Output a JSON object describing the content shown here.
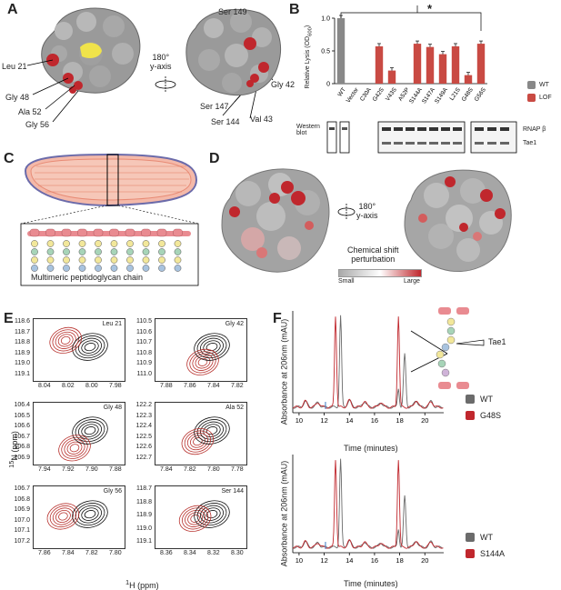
{
  "panelA": {
    "letter": "A",
    "rotation_label": "180°\ny-axis",
    "labels_left": [
      "Leu 21",
      "Gly 48",
      "Ala 52",
      "Gly 56"
    ],
    "labels_right": [
      "Ser 149",
      "Gly 42",
      "Ser 147",
      "Val 43",
      "Ser 144"
    ]
  },
  "panelB": {
    "letter": "B",
    "significance": "*",
    "ylabel": "Relative Lysis (OD",
    "ylabel_sub": "600",
    "legend": [
      {
        "label": "WT",
        "color": "#888888"
      },
      {
        "label": "LOF",
        "color": "#c94a43"
      }
    ],
    "western_label": "Western\nblot",
    "blot_labels": [
      "RNAP β",
      "Tae1"
    ]
  },
  "chart_data": {
    "type": "bar",
    "categories": [
      "WT",
      "Vector",
      "C30A",
      "G42S",
      "V43S",
      "A52P",
      "S144A",
      "S147A",
      "S149A",
      "L21S",
      "G48S",
      "G56S"
    ],
    "values": [
      1.0,
      0.0,
      0.0,
      0.57,
      0.2,
      0.0,
      0.61,
      0.56,
      0.45,
      0.57,
      0.13,
      0.61
    ],
    "groups": [
      "WT",
      "LOF",
      "LOF",
      "LOF",
      "LOF",
      "LOF",
      "LOF",
      "LOF",
      "LOF",
      "LOF",
      "LOF",
      "LOF"
    ],
    "ylim": [
      0,
      1.0
    ],
    "yticks": [
      "0",
      "0.5",
      "1.0"
    ],
    "ylabel": "Relative Lysis (OD600)"
  },
  "panelC": {
    "letter": "C",
    "caption": "Multimeric peptidoglycan chain"
  },
  "panelD": {
    "letter": "D",
    "rotation_label": "180°\ny-axis",
    "scale_title": "Chemical shift\nperturbation",
    "scale_small": "Small",
    "scale_large": "Large"
  },
  "panelE": {
    "letter": "E",
    "ylabel": "15N (ppm)",
    "xlabel": "1H (ppm)",
    "spectra": [
      {
        "name": "Leu 21",
        "yticks": [
          "118.6",
          "118.7",
          "118.8",
          "118.9",
          "119.0",
          "119.1"
        ],
        "xticks": [
          "8.04",
          "8.02",
          "8.00",
          "7.98"
        ]
      },
      {
        "name": "Gly 42",
        "yticks": [
          "110.5",
          "110.6",
          "110.7",
          "110.8",
          "110.9",
          "111.0"
        ],
        "xticks": [
          "7.88",
          "7.86",
          "7.84",
          "7.82"
        ]
      },
      {
        "name": "Gly 48",
        "yticks": [
          "106.4",
          "106.5",
          "106.6",
          "106.7",
          "106.8",
          "106.9"
        ],
        "xticks": [
          "7.94",
          "7.92",
          "7.90",
          "7.88"
        ]
      },
      {
        "name": "Ala 52",
        "yticks": [
          "122.2",
          "122.3",
          "122.4",
          "122.5",
          "122.6",
          "122.7"
        ],
        "xticks": [
          "7.84",
          "7.82",
          "7.80",
          "7.78"
        ]
      },
      {
        "name": "Gly 56",
        "yticks": [
          "106.7",
          "106.8",
          "106.9",
          "107.0",
          "107.1",
          "107.2"
        ],
        "xticks": [
          "7.86",
          "7.84",
          "7.82",
          "7.80"
        ]
      },
      {
        "name": "Ser 144",
        "yticks": [
          "118.7",
          "118.8",
          "118.9",
          "119.0",
          "119.1"
        ],
        "xticks": [
          "8.36",
          "8.34",
          "8.32",
          "8.30"
        ]
      }
    ]
  },
  "panelF": {
    "letter": "F",
    "ylabel": "Absorbance at 206nm (mAU)",
    "xlabel": "Time (minutes)",
    "xticks": [
      "10",
      "12",
      "14",
      "16",
      "18",
      "20"
    ],
    "tae1_label": "Tae1",
    "legend_top": [
      {
        "label": "WT",
        "color": "#6b6b6b"
      },
      {
        "label": "G48S",
        "color": "#c0272d"
      }
    ],
    "legend_bottom": [
      {
        "label": "WT",
        "color": "#6b6b6b"
      },
      {
        "label": "S144A",
        "color": "#c0272d"
      }
    ]
  }
}
